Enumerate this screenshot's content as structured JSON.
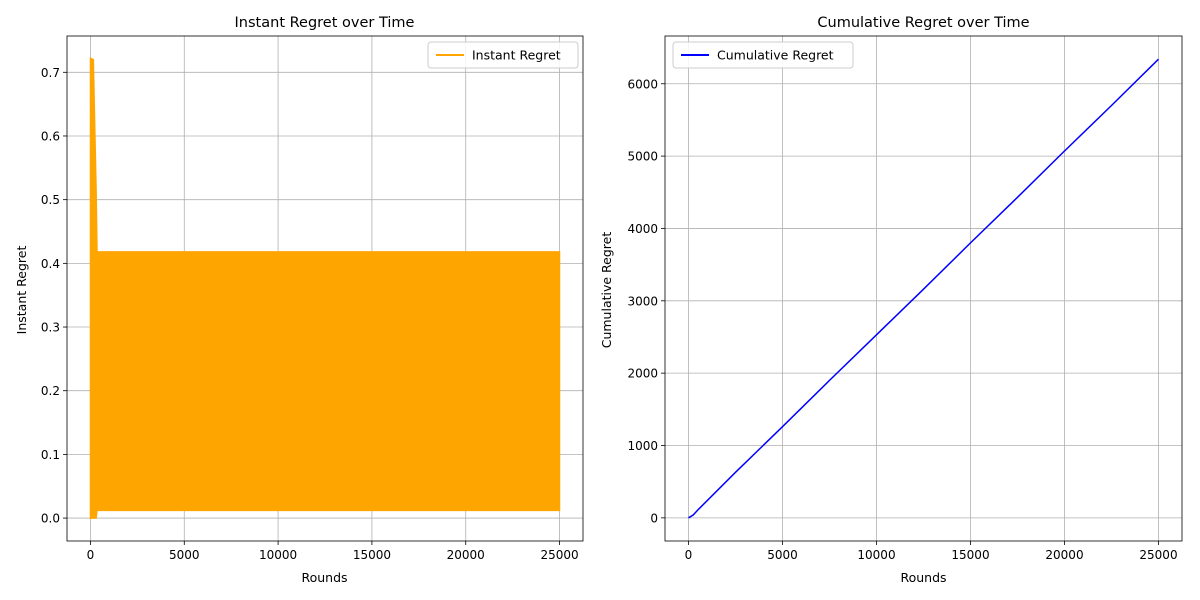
{
  "chart_data": [
    {
      "type": "line",
      "title": "Instant Regret over Time",
      "xlabel": "Rounds",
      "ylabel": "Instant Regret",
      "xlim": [
        -1250,
        26250
      ],
      "ylim": [
        -0.036,
        0.757
      ],
      "xticks": [
        0,
        5000,
        10000,
        15000,
        20000,
        25000
      ],
      "yticks": [
        0.0,
        0.1,
        0.2,
        0.3,
        0.4,
        0.5,
        0.6,
        0.7
      ],
      "grid": true,
      "legend_position": "top-right",
      "series": [
        {
          "name": "Instant Regret",
          "color": "#ffa500",
          "envelope": {
            "x": [
              0,
              150,
              300,
              350,
              400,
              25000
            ],
            "high": [
              0.722,
              0.72,
              0.515,
              0.418,
              0.418,
              0.418
            ],
            "low": [
              0.0,
              0.0,
              0.0,
              0.012,
              0.012,
              0.012
            ]
          }
        }
      ]
    },
    {
      "type": "line",
      "title": "Cumulative Regret over Time",
      "xlabel": "Rounds",
      "ylabel": "Cumulative Regret",
      "xlim": [
        -1250,
        26250
      ],
      "ylim": [
        -320,
        6660
      ],
      "xticks": [
        0,
        5000,
        10000,
        15000,
        20000,
        25000
      ],
      "yticks": [
        0,
        1000,
        2000,
        3000,
        4000,
        5000,
        6000
      ],
      "grid": true,
      "legend_position": "top-left",
      "series": [
        {
          "name": "Cumulative Regret",
          "color": "#0000ff",
          "x": [
            0,
            250,
            500,
            2500,
            5000,
            7500,
            10000,
            12500,
            15000,
            17500,
            20000,
            22500,
            25000
          ],
          "y": [
            0,
            40,
            110,
            630,
            1260,
            1900,
            2530,
            3160,
            3800,
            4430,
            5070,
            5700,
            6340
          ]
        }
      ]
    }
  ]
}
